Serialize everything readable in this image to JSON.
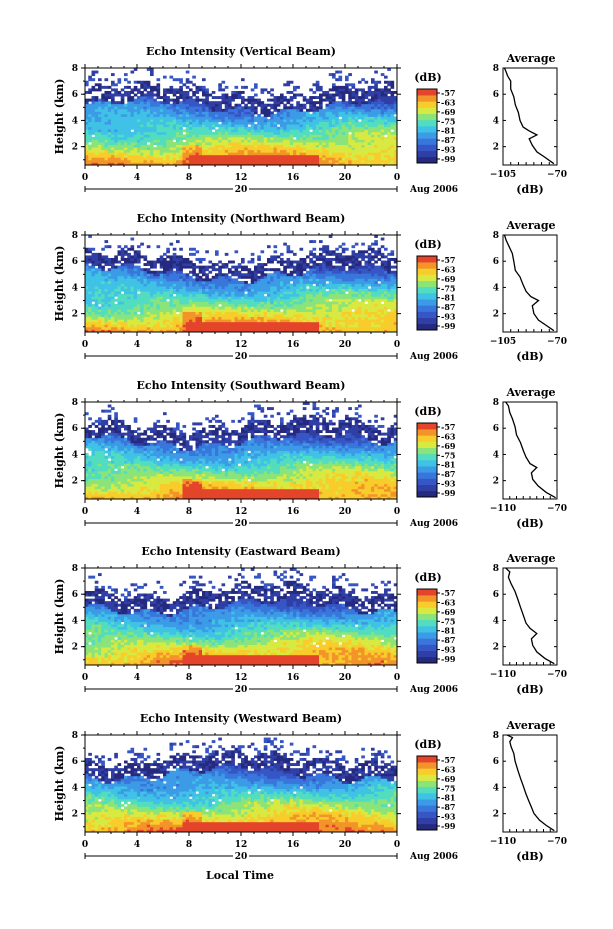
{
  "figure": {
    "xlabel": "Local Time",
    "date_prefix": "Aug",
    "date_year": "2006",
    "date_day": "20"
  },
  "chart_data": [
    {
      "type": "heatmap",
      "title": "Echo Intensity (Vertical Beam)",
      "ylabel": "Height (km)",
      "x_ticks": [
        "0",
        "4",
        "8",
        "12",
        "16",
        "20",
        "0"
      ],
      "xlim": [
        0,
        24
      ],
      "y_ticks": [
        "2",
        "4",
        "6",
        "8"
      ],
      "ylim": [
        0.6,
        8
      ],
      "colorbar": {
        "unit": "(dB)",
        "ticks": [
          "-57",
          "-63",
          "-69",
          "-75",
          "-81",
          "-87",
          "-93",
          "-99"
        ]
      },
      "profile": {
        "title": "Average",
        "xlabel": "(dB)",
        "x_ticks": [
          "-105",
          "-70"
        ],
        "xlim": [
          -105,
          -70
        ],
        "ylim": [
          0.6,
          8
        ],
        "y_ticks": [
          "2",
          "4",
          "6",
          "8"
        ],
        "points": [
          [
            -72,
            0.7
          ],
          [
            -78,
            1.2
          ],
          [
            -83,
            1.6
          ],
          [
            -86,
            2.1
          ],
          [
            -88,
            2.6
          ],
          [
            -83,
            2.9
          ],
          [
            -88,
            3.2
          ],
          [
            -92,
            3.5
          ],
          [
            -94,
            4.0
          ],
          [
            -95,
            4.6
          ],
          [
            -97,
            5.2
          ],
          [
            -98,
            5.8
          ],
          [
            -100,
            6.4
          ],
          [
            -100,
            7.0
          ],
          [
            -102,
            7.4
          ],
          [
            -103,
            7.7
          ],
          [
            -104,
            8.0
          ]
        ]
      }
    },
    {
      "type": "heatmap",
      "title": "Echo Intensity (Northward Beam)",
      "ylabel": "Height (km)",
      "x_ticks": [
        "0",
        "4",
        "8",
        "12",
        "16",
        "20",
        "0"
      ],
      "xlim": [
        0,
        24
      ],
      "y_ticks": [
        "2",
        "4",
        "6",
        "8"
      ],
      "ylim": [
        0.6,
        8
      ],
      "colorbar": {
        "unit": "(dB)",
        "ticks": [
          "-57",
          "-63",
          "-69",
          "-75",
          "-81",
          "-87",
          "-93",
          "-99"
        ]
      },
      "profile": {
        "title": "Average",
        "xlabel": "(dB)",
        "x_ticks": [
          "-105",
          "-70"
        ],
        "xlim": [
          -105,
          -70
        ],
        "ylim": [
          0.6,
          8
        ],
        "y_ticks": [
          "2",
          "4",
          "6",
          "8"
        ],
        "points": [
          [
            -72,
            0.7
          ],
          [
            -77,
            1.1
          ],
          [
            -82,
            1.5
          ],
          [
            -85,
            2.0
          ],
          [
            -86,
            2.6
          ],
          [
            -82,
            3.0
          ],
          [
            -87,
            3.3
          ],
          [
            -90,
            3.7
          ],
          [
            -92,
            4.2
          ],
          [
            -94,
            4.8
          ],
          [
            -97,
            5.3
          ],
          [
            -98,
            6.0
          ],
          [
            -99,
            6.6
          ],
          [
            -101,
            7.1
          ],
          [
            -103,
            7.6
          ],
          [
            -104,
            8.0
          ]
        ]
      }
    },
    {
      "type": "heatmap",
      "title": "Echo Intensity (Southward Beam)",
      "ylabel": "Height (km)",
      "x_ticks": [
        "0",
        "4",
        "8",
        "12",
        "16",
        "20",
        "0"
      ],
      "xlim": [
        0,
        24
      ],
      "y_ticks": [
        "2",
        "4",
        "6",
        "8"
      ],
      "ylim": [
        0.6,
        8
      ],
      "colorbar": {
        "unit": "(dB)",
        "ticks": [
          "-57",
          "-63",
          "-69",
          "-75",
          "-81",
          "-87",
          "-93",
          "-99"
        ]
      },
      "profile": {
        "title": "Average",
        "xlabel": "(dB)",
        "x_ticks": [
          "-110",
          "-70"
        ],
        "xlim": [
          -110,
          -70
        ],
        "ylim": [
          0.6,
          8
        ],
        "y_ticks": [
          "2",
          "4",
          "6",
          "8"
        ],
        "points": [
          [
            -71,
            0.7
          ],
          [
            -78,
            1.1
          ],
          [
            -84,
            1.6
          ],
          [
            -88,
            2.1
          ],
          [
            -89,
            2.6
          ],
          [
            -85,
            3.0
          ],
          [
            -90,
            3.3
          ],
          [
            -93,
            3.8
          ],
          [
            -95,
            4.3
          ],
          [
            -97,
            4.9
          ],
          [
            -100,
            5.5
          ],
          [
            -101,
            6.1
          ],
          [
            -103,
            6.7
          ],
          [
            -105,
            7.2
          ],
          [
            -106,
            7.7
          ],
          [
            -108,
            8.0
          ]
        ]
      }
    },
    {
      "type": "heatmap",
      "title": "Echo Intensity (Eastward Beam)",
      "ylabel": "Height (km)",
      "x_ticks": [
        "0",
        "4",
        "8",
        "12",
        "16",
        "20",
        "0"
      ],
      "xlim": [
        0,
        24
      ],
      "y_ticks": [
        "2",
        "4",
        "6",
        "8"
      ],
      "ylim": [
        0.6,
        8
      ],
      "colorbar": {
        "unit": "(dB)",
        "ticks": [
          "-57",
          "-63",
          "-69",
          "-75",
          "-81",
          "-87",
          "-93",
          "-99"
        ]
      },
      "profile": {
        "title": "Average",
        "xlabel": "(dB)",
        "x_ticks": [
          "-110",
          "-70"
        ],
        "xlim": [
          -110,
          -70
        ],
        "ylim": [
          0.6,
          8
        ],
        "y_ticks": [
          "2",
          "4",
          "6",
          "8"
        ],
        "points": [
          [
            -72,
            0.7
          ],
          [
            -79,
            1.1
          ],
          [
            -85,
            1.6
          ],
          [
            -88,
            2.1
          ],
          [
            -89,
            2.6
          ],
          [
            -85,
            3.0
          ],
          [
            -90,
            3.4
          ],
          [
            -93,
            3.8
          ],
          [
            -95,
            4.4
          ],
          [
            -97,
            5.0
          ],
          [
            -99,
            5.6
          ],
          [
            -101,
            6.2
          ],
          [
            -104,
            6.8
          ],
          [
            -106,
            7.3
          ],
          [
            -105,
            7.7
          ],
          [
            -108,
            8.0
          ]
        ]
      }
    },
    {
      "type": "heatmap",
      "title": "Echo Intensity (Westward Beam)",
      "ylabel": "Height (km)",
      "x_ticks": [
        "0",
        "4",
        "8",
        "12",
        "16",
        "20",
        "0"
      ],
      "xlim": [
        0,
        24
      ],
      "y_ticks": [
        "2",
        "4",
        "6",
        "8"
      ],
      "ylim": [
        0.6,
        8
      ],
      "colorbar": {
        "unit": "(dB)",
        "ticks": [
          "-57",
          "-63",
          "-69",
          "-75",
          "-81",
          "-87",
          "-93",
          "-99"
        ]
      },
      "profile": {
        "title": "Average",
        "xlabel": "(dB)",
        "x_ticks": [
          "-110",
          "-70"
        ],
        "xlim": [
          -110,
          -70
        ],
        "ylim": [
          0.6,
          8
        ],
        "y_ticks": [
          "2",
          "4",
          "6",
          "8"
        ],
        "points": [
          [
            -72,
            0.7
          ],
          [
            -78,
            1.1
          ],
          [
            -83,
            1.5
          ],
          [
            -87,
            2.0
          ],
          [
            -89,
            2.5
          ],
          [
            -91,
            3.0
          ],
          [
            -93,
            3.5
          ],
          [
            -95,
            4.1
          ],
          [
            -97,
            4.7
          ],
          [
            -99,
            5.3
          ],
          [
            -101,
            6.0
          ],
          [
            -102,
            6.6
          ],
          [
            -104,
            7.1
          ],
          [
            -105,
            7.5
          ],
          [
            -103,
            7.8
          ],
          [
            -107,
            8.0
          ]
        ]
      }
    }
  ]
}
